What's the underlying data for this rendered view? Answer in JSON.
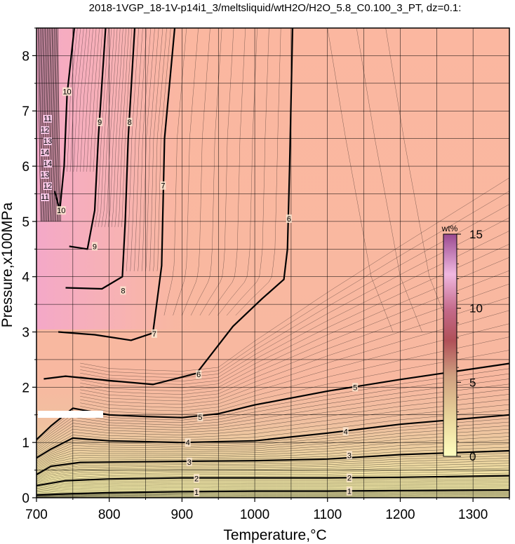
{
  "chart_data": {
    "type": "contour",
    "title": "2018-1VGP_18-1V-p14i1_3/meltsliquid/wtH2O/H2O_5.8_C0.100_3_PT, dz=0.1:",
    "xlabel": "Temperature,°C",
    "ylabel": "Pressure,x100MPa",
    "xlim": [
      700,
      1350
    ],
    "ylim": [
      0,
      8.5
    ],
    "xticks": [
      "700",
      "800",
      "900",
      "1000",
      "1100",
      "1200",
      "1300"
    ],
    "yticks": [
      "0",
      "1",
      "2",
      "3",
      "4",
      "5",
      "6",
      "7",
      "8"
    ],
    "grid": true,
    "colorbar": {
      "unit": "wt%",
      "range": [
        0,
        15
      ],
      "ticks": [
        "0",
        "5",
        "10",
        "15"
      ],
      "colors": [
        "#ffffc0",
        "#e8c890",
        "#c89878",
        "#b05058",
        "#c06088",
        "#f0b8e0",
        "#b060a0"
      ]
    },
    "contour_interval": 0.1,
    "major_levels": [
      {
        "level": 1,
        "label": "1",
        "points": [
          [
            700,
            0.05
          ],
          [
            740,
            0.07
          ],
          [
            800,
            0.09
          ],
          [
            900,
            0.11
          ],
          [
            1000,
            0.12
          ],
          [
            1100,
            0.12
          ],
          [
            1200,
            0.13
          ],
          [
            1350,
            0.14
          ]
        ]
      },
      {
        "level": 2,
        "label": "2",
        "points": [
          [
            700,
            0.22
          ],
          [
            740,
            0.31
          ],
          [
            800,
            0.34
          ],
          [
            900,
            0.36
          ],
          [
            1000,
            0.36
          ],
          [
            1100,
            0.36
          ],
          [
            1200,
            0.37
          ],
          [
            1350,
            0.4
          ]
        ]
      },
      {
        "level": 3,
        "label": "3",
        "points": [
          [
            700,
            0.42
          ],
          [
            720,
            0.57
          ],
          [
            760,
            0.64
          ],
          [
            900,
            0.66
          ],
          [
            1000,
            0.67
          ],
          [
            1100,
            0.7
          ],
          [
            1200,
            0.78
          ],
          [
            1350,
            0.85
          ]
        ]
      },
      {
        "level": 4,
        "label": "4",
        "points": [
          [
            700,
            0.72
          ],
          [
            720,
            0.88
          ],
          [
            750,
            1.08
          ],
          [
            800,
            1.03
          ],
          [
            900,
            1.0
          ],
          [
            1000,
            1.03
          ],
          [
            1100,
            1.17
          ],
          [
            1200,
            1.33
          ],
          [
            1350,
            1.5
          ]
        ]
      },
      {
        "level": 5,
        "label": "5",
        "points": [
          [
            700,
            1.05
          ],
          [
            720,
            1.3
          ],
          [
            750,
            1.62
          ],
          [
            800,
            1.5
          ],
          [
            850,
            1.47
          ],
          [
            900,
            1.45
          ],
          [
            950,
            1.52
          ],
          [
            1000,
            1.68
          ],
          [
            1100,
            1.93
          ],
          [
            1200,
            2.14
          ],
          [
            1350,
            2.43
          ]
        ]
      },
      {
        "level": 6,
        "label": "6",
        "points": [
          [
            710,
            2.15
          ],
          [
            740,
            2.2
          ],
          [
            800,
            2.12
          ],
          [
            860,
            2.05
          ],
          [
            920,
            2.25
          ],
          [
            970,
            3.1
          ],
          [
            1010,
            3.6
          ],
          [
            1040,
            3.95
          ],
          [
            1045,
            4.5
          ],
          [
            1048,
            6.0
          ],
          [
            1052,
            8.5
          ]
        ]
      },
      {
        "level": 7,
        "label": "7",
        "points": [
          [
            730,
            3.0
          ],
          [
            780,
            2.95
          ],
          [
            830,
            2.85
          ],
          [
            860,
            2.98
          ],
          [
            872,
            4.2
          ],
          [
            876,
            6.5
          ],
          [
            890,
            8.5
          ]
        ]
      },
      {
        "level": 8,
        "label": "8",
        "points": [
          [
            740,
            3.8
          ],
          [
            790,
            3.78
          ],
          [
            818,
            4.0
          ],
          [
            822,
            5.0
          ],
          [
            826,
            6.5
          ],
          [
            835,
            8.5
          ]
        ]
      },
      {
        "level": 9,
        "label": "9",
        "points": [
          [
            745,
            4.55
          ],
          [
            770,
            4.5
          ],
          [
            780,
            5.2
          ],
          [
            785,
            6.5
          ],
          [
            795,
            8.5
          ]
        ]
      },
      {
        "level": 10,
        "label": "10",
        "points": [
          [
            725,
            5.55
          ],
          [
            732,
            5.2
          ],
          [
            738,
            6.0
          ],
          [
            742,
            7.3
          ],
          [
            752,
            8.5
          ]
        ]
      }
    ],
    "label_positions": [
      {
        "label": "1",
        "x": 920,
        "y": 0.1
      },
      {
        "label": "1",
        "x": 1130,
        "y": 0.12
      },
      {
        "label": "2",
        "x": 920,
        "y": 0.35
      },
      {
        "label": "2",
        "x": 1130,
        "y": 0.36
      },
      {
        "label": "3",
        "x": 910,
        "y": 0.65
      },
      {
        "label": "3",
        "x": 1130,
        "y": 0.77
      },
      {
        "label": "4",
        "x": 908,
        "y": 1.0
      },
      {
        "label": "4",
        "x": 1125,
        "y": 1.2
      },
      {
        "label": "5",
        "x": 925,
        "y": 1.46
      },
      {
        "label": "5",
        "x": 1138,
        "y": 2.0
      },
      {
        "label": "6",
        "x": 923,
        "y": 2.23
      },
      {
        "label": "6",
        "x": 1047,
        "y": 5.05
      },
      {
        "label": "7",
        "x": 862,
        "y": 2.97
      },
      {
        "label": "7",
        "x": 874,
        "y": 5.65
      },
      {
        "label": "8",
        "x": 819,
        "y": 3.75
      },
      {
        "label": "8",
        "x": 828,
        "y": 6.8
      },
      {
        "label": "9",
        "x": 780,
        "y": 4.55
      },
      {
        "label": "9",
        "x": 787,
        "y": 6.8
      },
      {
        "label": "10",
        "x": 734,
        "y": 5.2
      },
      {
        "label": "10",
        "x": 742,
        "y": 7.35
      }
    ],
    "edge_labels": [
      "11",
      "12",
      "13",
      "14",
      "14",
      "13",
      "12",
      "11"
    ]
  }
}
